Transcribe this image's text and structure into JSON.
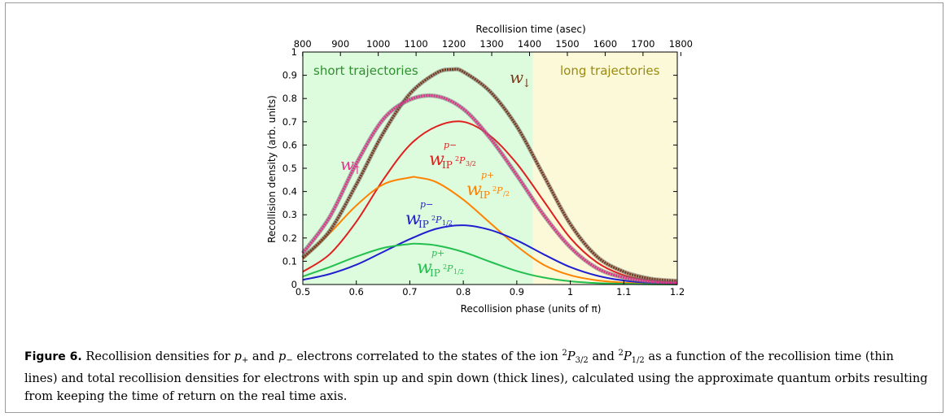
{
  "chart_data": {
    "type": "line",
    "top_axis_label": "Recollision time (asec)",
    "xlabel": "Recollision phase (units of π)",
    "ylabel": "Recollision density (arb. units)",
    "xlim": [
      0.5,
      1.2
    ],
    "ylim": [
      0,
      1
    ],
    "x_ticks": [
      0.5,
      0.6,
      0.7,
      0.8,
      0.9,
      1,
      1.1,
      1.2
    ],
    "x_tick_labels": [
      "0.5",
      "0.6",
      "0.7",
      "0.8",
      "0.9",
      "1",
      "1.1",
      "1.2"
    ],
    "y_ticks": [
      0,
      0.1,
      0.2,
      0.3,
      0.4,
      0.5,
      0.6,
      0.7,
      0.8,
      0.9,
      1
    ],
    "y_tick_labels": [
      "0",
      "0.1",
      "0.2",
      "0.3",
      "0.4",
      "0.5",
      "0.6",
      "0.7",
      "0.8",
      "0.9",
      "1"
    ],
    "top_ticks": [
      800,
      900,
      1000,
      1100,
      1200,
      1300,
      1400,
      1500,
      1600,
      1700,
      1800
    ],
    "top_tick_labels": [
      "800",
      "900",
      "1000",
      "1100",
      "1200",
      "1300",
      "1400",
      "1500",
      "1600",
      "1700",
      "1800"
    ],
    "top_axis_phase_per_asec": 0.000707,
    "top_axis_phase_offset": -0.066,
    "regions": [
      {
        "label": "short trajectories",
        "x_from": 0.5,
        "x_to": 0.93,
        "color": "#ddfbdd",
        "text_color": "#2f8f2f"
      },
      {
        "label": "long trajectories",
        "x_from": 0.93,
        "x_to": 1.2,
        "color": "#fcf9d8",
        "text_color": "#9a8a14"
      }
    ],
    "series": [
      {
        "key": "w_down",
        "thick": true,
        "color": "#7a3b1e",
        "peak_x": 0.78,
        "peak_y": 0.925,
        "x": [
          0.5,
          0.55,
          0.6,
          0.65,
          0.7,
          0.75,
          0.78,
          0.8,
          0.85,
          0.9,
          0.95,
          1.0,
          1.05,
          1.1,
          1.15,
          1.2
        ],
        "y": [
          0.115,
          0.23,
          0.43,
          0.65,
          0.82,
          0.91,
          0.925,
          0.915,
          0.83,
          0.68,
          0.47,
          0.26,
          0.12,
          0.055,
          0.025,
          0.015
        ]
      },
      {
        "key": "w_up",
        "thick": true,
        "color": "#e0338c",
        "peak_x": 0.75,
        "peak_y": 0.81,
        "x": [
          0.5,
          0.55,
          0.6,
          0.65,
          0.7,
          0.75,
          0.8,
          0.85,
          0.9,
          0.95,
          1.0,
          1.05,
          1.1,
          1.15,
          1.2
        ],
        "y": [
          0.135,
          0.29,
          0.52,
          0.71,
          0.795,
          0.81,
          0.755,
          0.63,
          0.47,
          0.3,
          0.16,
          0.07,
          0.03,
          0.013,
          0.006
        ]
      },
      {
        "key": "p_minus_3_2",
        "thick": false,
        "color": "#e01f1f",
        "peak_x": 0.8,
        "peak_y": 0.7,
        "x": [
          0.5,
          0.55,
          0.6,
          0.65,
          0.7,
          0.75,
          0.8,
          0.85,
          0.9,
          0.95,
          1.0,
          1.05,
          1.1,
          1.15,
          1.2
        ],
        "y": [
          0.055,
          0.13,
          0.27,
          0.45,
          0.6,
          0.68,
          0.7,
          0.64,
          0.52,
          0.36,
          0.2,
          0.095,
          0.04,
          0.017,
          0.008
        ]
      },
      {
        "key": "p_plus_3_2",
        "thick": false,
        "color": "#ff8200",
        "peak_x": 0.715,
        "peak_y": 0.46,
        "x": [
          0.5,
          0.55,
          0.6,
          0.65,
          0.7,
          0.715,
          0.75,
          0.8,
          0.85,
          0.9,
          0.95,
          1.0,
          1.05,
          1.1,
          1.15,
          1.2
        ],
        "y": [
          0.11,
          0.22,
          0.34,
          0.43,
          0.46,
          0.46,
          0.44,
          0.365,
          0.265,
          0.165,
          0.085,
          0.04,
          0.018,
          0.008,
          0.004,
          0.002
        ]
      },
      {
        "key": "p_minus_1_2",
        "thick": false,
        "color": "#1f1fd0",
        "peak_x": 0.8,
        "peak_y": 0.255,
        "x": [
          0.5,
          0.55,
          0.6,
          0.65,
          0.7,
          0.75,
          0.8,
          0.85,
          0.9,
          0.95,
          1.0,
          1.05,
          1.1,
          1.15,
          1.2
        ],
        "y": [
          0.02,
          0.045,
          0.085,
          0.14,
          0.195,
          0.24,
          0.255,
          0.235,
          0.19,
          0.13,
          0.075,
          0.038,
          0.017,
          0.007,
          0.003
        ]
      },
      {
        "key": "p_plus_1_2",
        "thick": false,
        "color": "#22c04e",
        "peak_x": 0.715,
        "peak_y": 0.175,
        "x": [
          0.5,
          0.55,
          0.6,
          0.65,
          0.7,
          0.715,
          0.75,
          0.8,
          0.85,
          0.9,
          0.95,
          1.0,
          1.05,
          1.1,
          1.15,
          1.2
        ],
        "y": [
          0.035,
          0.075,
          0.12,
          0.157,
          0.174,
          0.175,
          0.168,
          0.14,
          0.098,
          0.058,
          0.03,
          0.014,
          0.006,
          0.003,
          0.001,
          0.0
        ]
      }
    ],
    "grid": false
  },
  "caption": {
    "figure_label": "Figure 6.",
    "seg1": " Recollision densities for ",
    "p_sym": "p",
    "plus_sub": "+",
    "and1": " and ",
    "minus_sub": "−",
    "seg2": " electrons correlated to the states of the ion ",
    "two": "2",
    "P": "P",
    "j32": "3/2",
    "and2": " and ",
    "j12": "1/2",
    "seg3": " as a function of the recollision time (thin lines) and total recollision densities for electrons with spin up and spin down (thick lines), calculated using the approximate quantum orbits resulting from keeping the time of return on the real time axis."
  }
}
